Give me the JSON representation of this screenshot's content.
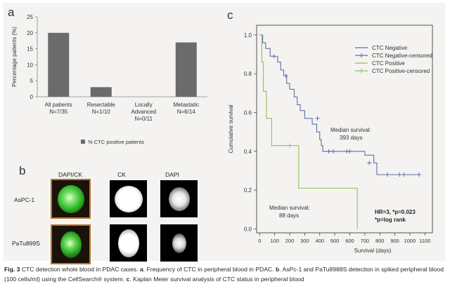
{
  "panels": {
    "a": "a",
    "b": "b",
    "c": "c"
  },
  "chart_data": [
    {
      "type": "bar",
      "ylabel": "Percentage patients (%)",
      "ylim": [
        0,
        25
      ],
      "yticks": [
        "0",
        "5",
        "10",
        "15",
        "20",
        "25"
      ],
      "categories": [
        {
          "line1": "All patients",
          "line2": "N=7/35"
        },
        {
          "line1": "Resectable",
          "line2": "N=1/10"
        },
        {
          "line1": "Locally",
          "line2": "Advanced",
          "line3": "N=0/11"
        },
        {
          "line1": "Metastatic",
          "line2": "N=6/14"
        }
      ],
      "values": [
        20,
        3,
        0,
        17
      ],
      "legend": "% CTC positive patients",
      "bar_color": "#6b6b6b"
    },
    {
      "type": "line",
      "subtype": "kaplan-meier",
      "xlabel": "Survival (days)",
      "ylabel": "Cumulative survival",
      "xlim": [
        -20,
        1150
      ],
      "ylim": [
        -0.02,
        1.05
      ],
      "xticks": [
        "0",
        "100",
        "200",
        "300",
        "400",
        "500",
        "600",
        "700",
        "800",
        "900",
        "1000",
        "1100"
      ],
      "yticks": [
        "0.0",
        "0.2",
        "0.4",
        "0.6",
        "0.8",
        "1.0"
      ],
      "series": [
        {
          "name": "CTC Negative",
          "censored_name": "CTC Negative-censored",
          "color": "#5b6fa6",
          "steps": [
            [
              0,
              1.0
            ],
            [
              20,
              0.96
            ],
            [
              40,
              0.93
            ],
            [
              70,
              0.89
            ],
            [
              120,
              0.86
            ],
            [
              140,
              0.82
            ],
            [
              160,
              0.79
            ],
            [
              180,
              0.75
            ],
            [
              200,
              0.72
            ],
            [
              230,
              0.68
            ],
            [
              250,
              0.64
            ],
            [
              270,
              0.61
            ],
            [
              300,
              0.57
            ],
            [
              350,
              0.54
            ],
            [
              380,
              0.5
            ],
            [
              400,
              0.46
            ],
            [
              410,
              0.43
            ],
            [
              420,
              0.4
            ],
            [
              700,
              0.38
            ],
            [
              760,
              0.34
            ],
            [
              780,
              0.28
            ],
            [
              1070,
              0.28
            ]
          ],
          "censored": [
            [
              95,
              0.89
            ],
            [
              175,
              0.79
            ],
            [
              385,
              0.57
            ],
            [
              460,
              0.4
            ],
            [
              490,
              0.4
            ],
            [
              580,
              0.4
            ],
            [
              600,
              0.4
            ],
            [
              730,
              0.34
            ],
            [
              850,
              0.28
            ],
            [
              930,
              0.28
            ],
            [
              960,
              0.28
            ],
            [
              1060,
              0.28
            ]
          ]
        },
        {
          "name": "CTC Positive",
          "censored_name": "CTC Positive-censored",
          "color": "#8dc255",
          "steps": [
            [
              0,
              1.0
            ],
            [
              15,
              0.86
            ],
            [
              25,
              0.71
            ],
            [
              45,
              0.57
            ],
            [
              80,
              0.43
            ],
            [
              260,
              0.21
            ],
            [
              650,
              0.0
            ]
          ],
          "censored": [
            [
              200,
              0.43
            ]
          ]
        }
      ],
      "annotations": {
        "neg_median_l1": "Median survival:",
        "neg_median_l2": "393 days",
        "pos_median_l1": "Median survival:",
        "pos_median_l2": "88 days",
        "stat_l1": "HR=3, *p=0.023",
        "stat_l2": "*p=log rank"
      }
    }
  ],
  "cells": {
    "columns": [
      "DAPI/CK",
      "CK",
      "DAPI"
    ],
    "rows": [
      "AsPC-1",
      "PaTu899S"
    ]
  },
  "caption": {
    "fig_label": "Fig. 3",
    "text1": " CTC detection whole blood in PDAC cases. ",
    "a": "a",
    "text2": ". Frequency of CTC in peripheral blood in PDAC. ",
    "b": "b",
    "text3": ". AsPc-1 and PaTu8988S detection in spiked peripheral blood (100 cells/ml) using the CellSearch® system. ",
    "c": "c",
    "text4": ". Kaplan Meier survival analysis of CTC status in peripheral blood"
  }
}
